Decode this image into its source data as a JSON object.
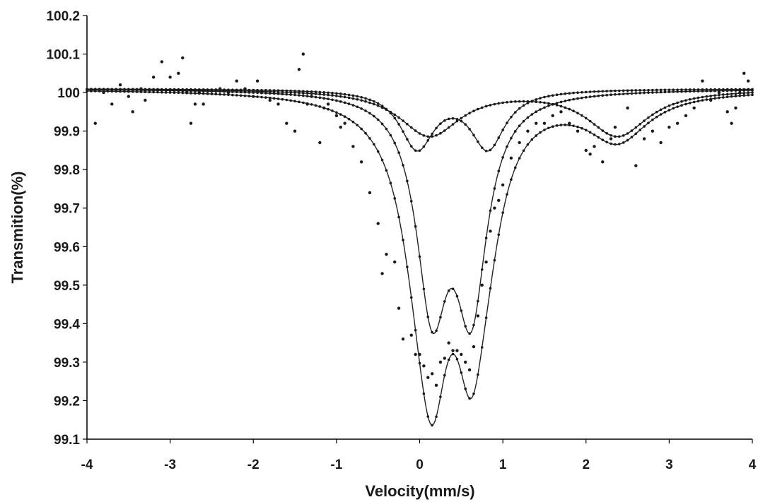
{
  "chart_data": {
    "type": "scatter",
    "xlabel": "Velocity(mm/s)",
    "ylabel": "Transmition(%)",
    "xlim": [
      -4,
      4
    ],
    "ylim": [
      99.1,
      100.2
    ],
    "xticks": [
      "-4",
      "-3",
      "-2",
      "-1",
      "0",
      "1",
      "2",
      "3",
      "4"
    ],
    "yticks": [
      "99.1",
      "99.2",
      "99.3",
      "99.4",
      "99.5",
      "99.6",
      "99.7",
      "99.8",
      "99.9",
      "100",
      "100.1",
      "100.2"
    ],
    "grid": false,
    "legend": "none",
    "colors": {
      "line": "#222222",
      "points": "#1a1a1a",
      "axis": "#000000"
    },
    "series": [
      {
        "role": "measured-data",
        "style": "points",
        "x": [
          -3.9,
          -3.8,
          -3.7,
          -3.6,
          -3.5,
          -3.45,
          -3.35,
          -3.3,
          -3.2,
          -3.1,
          -3.0,
          -2.9,
          -2.85,
          -2.8,
          -2.75,
          -2.7,
          -2.65,
          -2.6,
          -2.4,
          -2.3,
          -2.2,
          -2.1,
          -2.0,
          -1.95,
          -1.9,
          -1.8,
          -1.7,
          -1.6,
          -1.5,
          -1.45,
          -1.4,
          -1.35,
          -1.3,
          -1.2,
          -1.15,
          -1.1,
          -1.0,
          -0.95,
          -0.9,
          -0.8,
          -0.7,
          -0.6,
          -0.5,
          -0.45,
          -0.4,
          -0.3,
          -0.25,
          -0.2,
          -0.1,
          -0.05,
          0.0,
          0.05,
          0.1,
          0.15,
          0.2,
          0.25,
          0.3,
          0.35,
          0.4,
          0.45,
          0.5,
          0.55,
          0.6,
          0.65,
          0.7,
          0.75,
          0.8,
          0.85,
          0.9,
          0.95,
          1.0,
          1.1,
          1.2,
          1.3,
          1.4,
          1.5,
          1.6,
          1.7,
          1.8,
          1.9,
          2.0,
          2.05,
          2.1,
          2.2,
          2.3,
          2.35,
          2.5,
          2.6,
          2.7,
          2.8,
          2.9,
          3.0,
          3.1,
          3.2,
          3.3,
          3.4,
          3.5,
          3.6,
          3.7,
          3.75,
          3.8,
          3.85,
          3.9,
          3.95
        ],
        "y": [
          99.92,
          100.0,
          99.97,
          100.02,
          99.99,
          99.95,
          100.01,
          99.98,
          100.04,
          100.08,
          100.04,
          100.05,
          100.09,
          100.0,
          99.92,
          99.97,
          100.0,
          99.97,
          100.01,
          100.0,
          100.03,
          100.01,
          99.99,
          100.03,
          100.0,
          99.98,
          99.97,
          99.92,
          99.9,
          100.06,
          100.1,
          99.97,
          99.99,
          99.87,
          99.96,
          99.97,
          99.94,
          99.91,
          99.92,
          99.86,
          99.82,
          99.74,
          99.66,
          99.53,
          99.58,
          99.56,
          99.44,
          99.36,
          99.37,
          99.32,
          99.32,
          99.29,
          99.26,
          99.27,
          99.24,
          99.3,
          99.31,
          99.35,
          99.33,
          99.33,
          99.32,
          99.3,
          99.28,
          99.34,
          99.42,
          99.5,
          99.56,
          99.64,
          99.7,
          99.72,
          99.76,
          99.83,
          99.87,
          99.9,
          99.92,
          99.92,
          99.94,
          99.95,
          99.92,
          99.9,
          99.85,
          99.84,
          99.86,
          99.82,
          99.88,
          99.91,
          99.96,
          99.81,
          99.88,
          99.9,
          99.87,
          99.91,
          99.92,
          99.94,
          99.96,
          100.03,
          99.98,
          100.0,
          99.95,
          99.92,
          99.96,
          100.0,
          100.05,
          100.03
        ]
      },
      {
        "role": "doublet-fit-1",
        "style": "line-with-markers",
        "baseline": 100.01,
        "lorentz_peaks": [
          {
            "center": 0.15,
            "depth": 0.53,
            "hwhm": 0.23
          },
          {
            "center": 0.62,
            "depth": 0.53,
            "hwhm": 0.23
          }
        ]
      },
      {
        "role": "doublet-fit-2",
        "style": "line-with-markers",
        "baseline": 100.01,
        "lorentz_peaks": [
          {
            "center": -0.03,
            "depth": 0.15,
            "hwhm": 0.25
          },
          {
            "center": 0.82,
            "depth": 0.15,
            "hwhm": 0.25
          }
        ]
      },
      {
        "role": "doublet-fit-3",
        "style": "line-with-markers",
        "baseline": 100.01,
        "lorentz_peaks": [
          {
            "center": 0.12,
            "depth": 0.12,
            "hwhm": 0.45
          },
          {
            "center": 2.38,
            "depth": 0.12,
            "hwhm": 0.45
          }
        ]
      },
      {
        "role": "total-fit",
        "style": "line-with-markers",
        "baseline": 100.01,
        "sum_of": [
          "doublet-fit-1",
          "doublet-fit-2",
          "doublet-fit-3"
        ]
      }
    ]
  }
}
